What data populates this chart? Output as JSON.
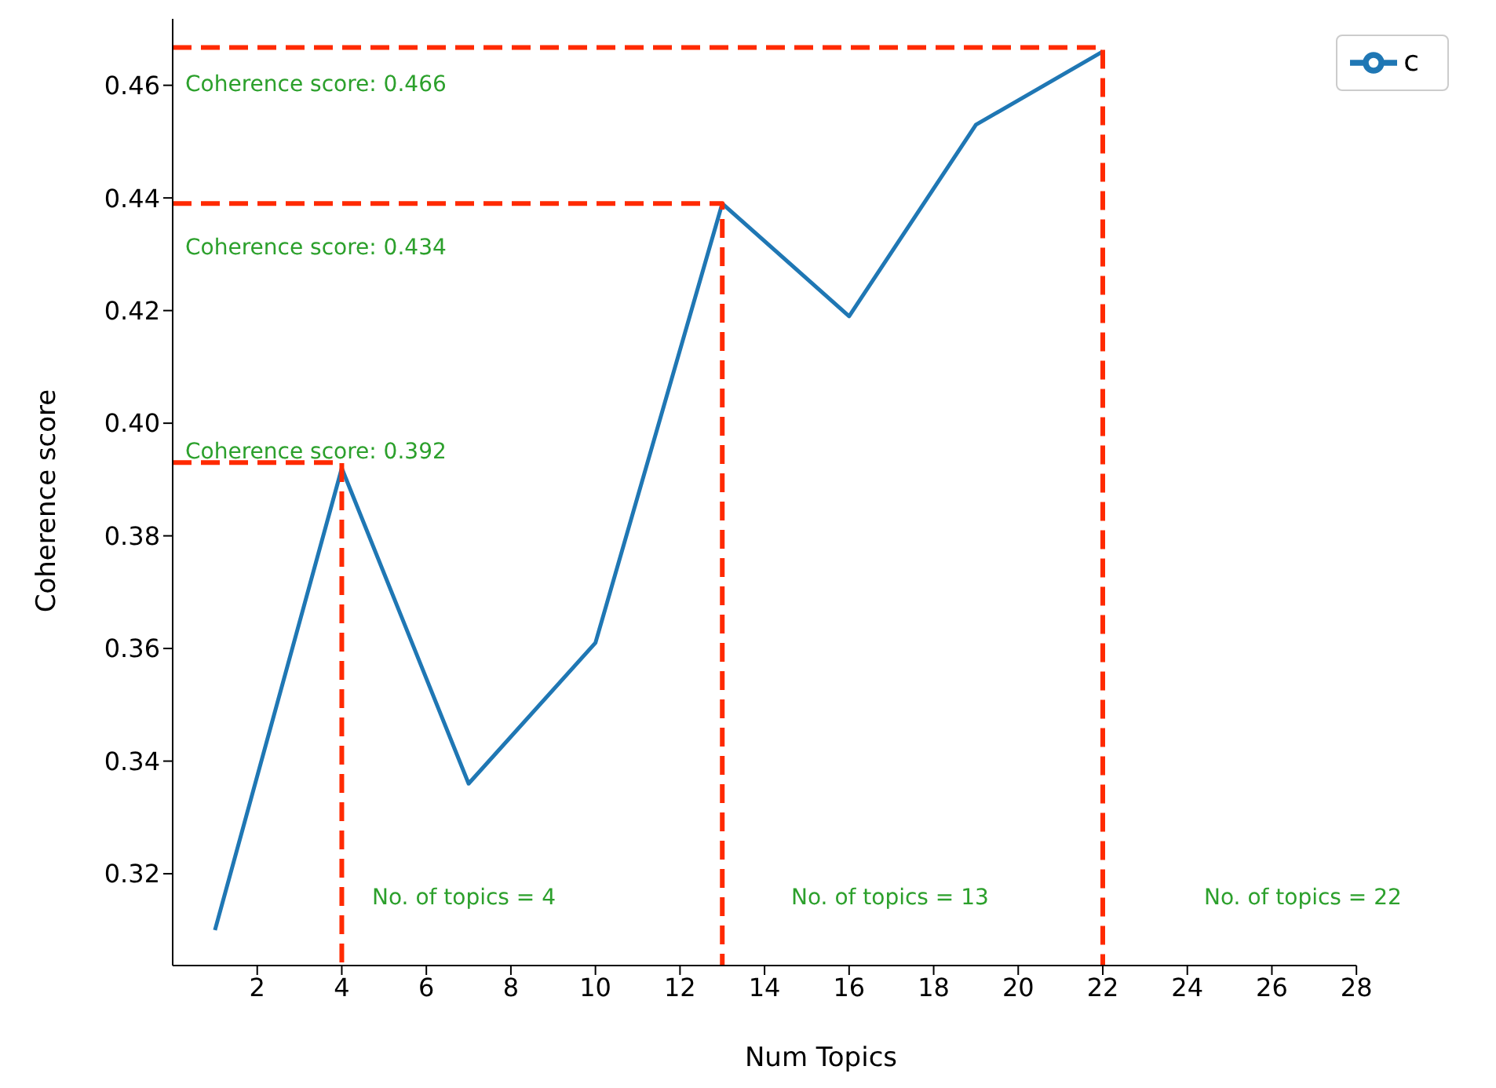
{
  "chart_data": {
    "type": "line",
    "xlabel": "Num Topics",
    "ylabel": "Coherence score",
    "xlim": [
      0,
      28
    ],
    "xticks": [
      2,
      4,
      6,
      8,
      10,
      12,
      14,
      16,
      18,
      20,
      22,
      24,
      26,
      28
    ],
    "ylim": [
      0.3037,
      0.4718
    ],
    "yticks": [
      0.32,
      0.34,
      0.36,
      0.38,
      {
        "value": 0.4,
        "label": "0.40"
      },
      0.42,
      0.44,
      0.46
    ],
    "grid": false,
    "legend": "top right",
    "series": [
      {
        "name": "c",
        "color": "#1f77b4",
        "x": [
          1,
          4,
          7,
          10,
          13,
          16,
          19,
          22
        ],
        "values": [
          0.31,
          0.392,
          0.336,
          0.361,
          0.439,
          0.419,
          0.453,
          0.466
        ]
      },
      {
        "color": "#ff2a00",
        "line_style": "dashed",
        "x": [
          0,
          4,
          4
        ],
        "values": [
          0.393,
          0.393,
          0.3037
        ]
      },
      {
        "color": "#ff2a00",
        "line_style": "dashed",
        "x": [
          0,
          13,
          13
        ],
        "values": [
          0.439,
          0.439,
          0.3037
        ]
      },
      {
        "color": "#ff2a00",
        "line_style": "dashed",
        "x": [
          0,
          22,
          22
        ],
        "values": [
          0.4667,
          0.4667,
          0.3037
        ]
      }
    ],
    "annotations": [
      "Coherence score: 0.466",
      "Coherence score: 0.434",
      "Coherence score: 0.392",
      "No. of topics = 4",
      "No. of topics = 13",
      "No. of topics = 22"
    ]
  }
}
